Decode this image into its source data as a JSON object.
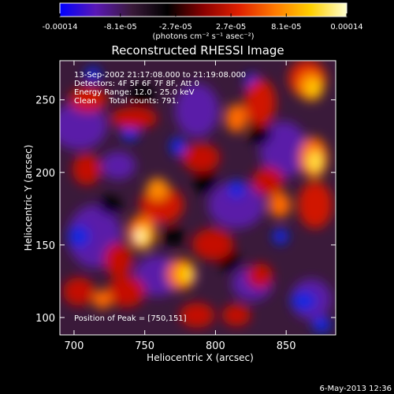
{
  "colorbar": {
    "tick_labels": [
      "-0.00014",
      "-8.1e-05",
      "-2.7e-05",
      "2.7e-05",
      "8.1e-05",
      "0.00014"
    ],
    "ticks": [
      -0.00014,
      -8.1e-05,
      -2.7e-05,
      2.7e-05,
      8.1e-05,
      0.00014
    ],
    "range": [
      -0.00014,
      0.00014
    ],
    "units_label": "(photons cm⁻² s⁻¹ asec⁻²)",
    "stops": [
      "#0000ff",
      "#5a18b5",
      "#3a1a3a",
      "#000000",
      "#8a0000",
      "#e02000",
      "#ff7a00",
      "#ffd000",
      "#ffffd0"
    ]
  },
  "chart_data": {
    "type": "heatmap",
    "title": "Reconstructed RHESSI Image",
    "xlabel": "Heliocentric X (arcsec)",
    "ylabel": "Heliocentric Y (arcsec)",
    "xlim": [
      690,
      885
    ],
    "ylim": [
      88,
      277
    ],
    "x_ticks": [
      700,
      750,
      800,
      850
    ],
    "y_ticks": [
      100,
      150,
      200,
      250
    ],
    "annotations": [
      "13-Sep-2002 21:17:08.000 to 21:19:08.000",
      "Detectors: 4F 5F 6F 7F 8F, Att 0",
      "Energy Range: 12.0 - 25.0 keV",
      "Clean     Total counts: 791."
    ],
    "peak_label": "Position of Peak = [750,151]",
    "peak": [
      750,
      151
    ]
  },
  "footer": {
    "date": "6-May-2013 12:36"
  }
}
